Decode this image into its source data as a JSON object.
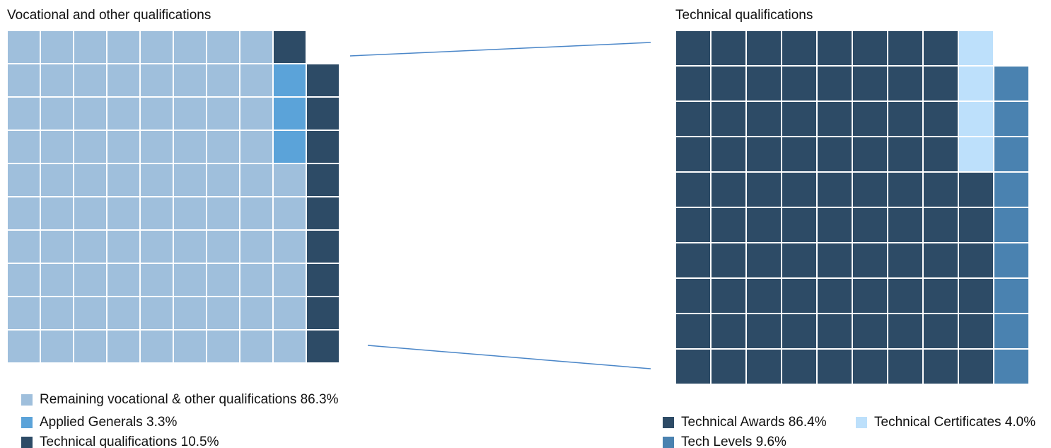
{
  "chart_data": [
    {
      "type": "waffle",
      "title": "Vocational and other qualifications",
      "categories": [
        "Remaining vocational & other qualifications",
        "Applied Generals",
        "Technical qualifications"
      ],
      "values": [
        86.3,
        3.3,
        10.5
      ],
      "value_labels": [
        "86.3%",
        "3.3%",
        "10.5%"
      ],
      "colors": [
        "#9fbfdc",
        "#5ba3d9",
        "#2d4b66"
      ]
    },
    {
      "type": "waffle",
      "title": "Technical qualifications",
      "categories": [
        "Technical Awards",
        "Technical Certificates",
        "Tech Levels"
      ],
      "values": [
        86.4,
        4.0,
        9.6
      ],
      "value_labels": [
        "86.4%",
        "4.0%",
        "9.6%"
      ],
      "colors": [
        "#2d4b66",
        "#bde0fb",
        "#4a82b0"
      ]
    }
  ]
}
